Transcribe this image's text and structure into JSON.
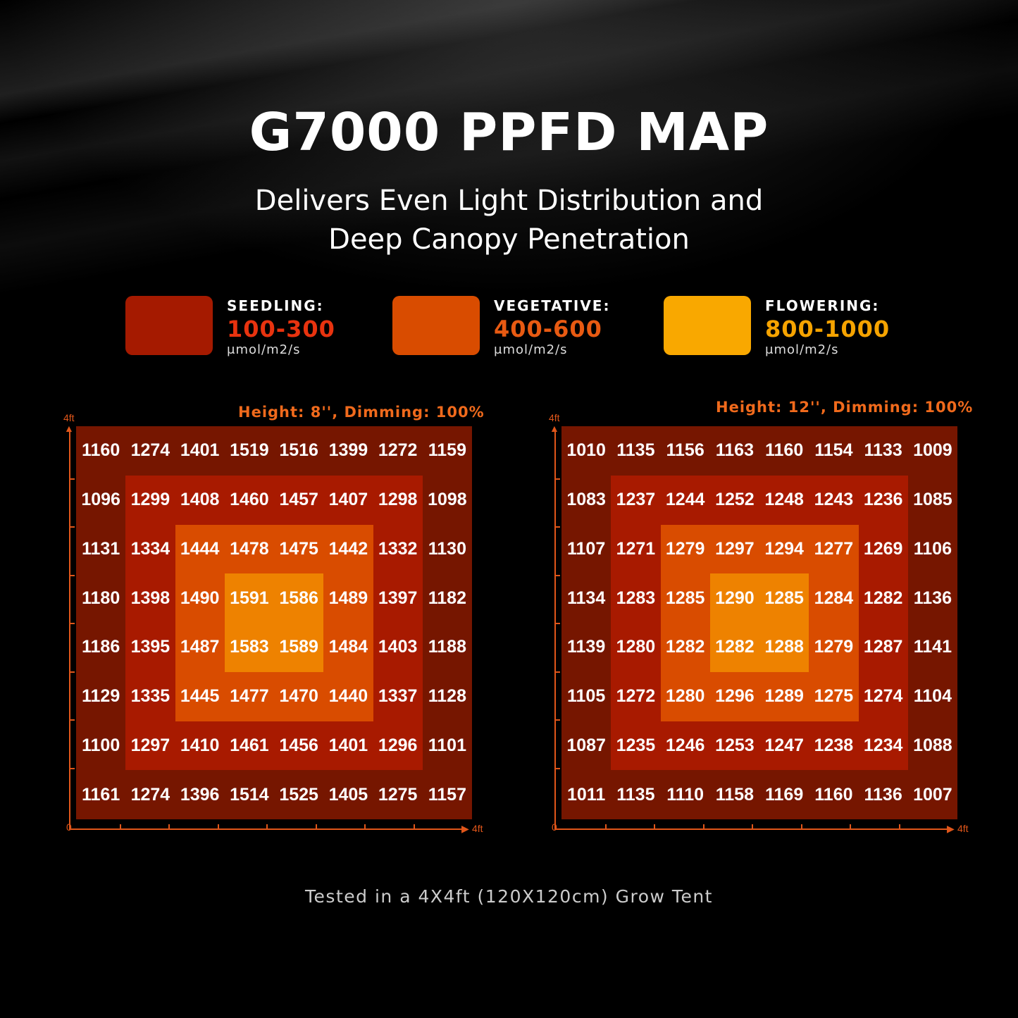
{
  "title": "G7000 PPFD MAP",
  "subtitle_line1": "Delivers Even Light Distribution and",
  "subtitle_line2": "Deep Canopy Penetration",
  "legend": [
    {
      "name": "SEEDLING:",
      "range": "100-300",
      "unit": "μmol/m2/s",
      "color": "#a51a00",
      "text_color": "#e8330f"
    },
    {
      "name": "VEGETATIVE:",
      "range": "400-600",
      "unit": "μmol/m2/s",
      "color": "#d94c00",
      "text_color": "#e85a12"
    },
    {
      "name": "FLOWERING:",
      "range": "800-1000",
      "unit": "μmol/m2/s",
      "color": "#f9a800",
      "text_color": "#f5a300"
    }
  ],
  "zone_colors": [
    "#761600",
    "#a81a00",
    "#d94c00",
    "#ee8200"
  ],
  "footer": "Tested in a 4X4ft (120X120cm) Grow Tent",
  "chart_data": [
    {
      "type": "heatmap",
      "title": "Height: 8'', Dimming: 100%",
      "x_axis": {
        "start_label": "0",
        "end_label": "4ft"
      },
      "y_axis": {
        "end_label": "4ft"
      },
      "rows": [
        [
          1160,
          1274,
          1401,
          1519,
          1516,
          1399,
          1272,
          1159
        ],
        [
          1096,
          1299,
          1408,
          1460,
          1457,
          1407,
          1298,
          1098
        ],
        [
          1131,
          1334,
          1444,
          1478,
          1475,
          1442,
          1332,
          1130
        ],
        [
          1180,
          1398,
          1490,
          1591,
          1586,
          1489,
          1397,
          1182
        ],
        [
          1186,
          1395,
          1487,
          1583,
          1589,
          1484,
          1403,
          1188
        ],
        [
          1129,
          1335,
          1445,
          1477,
          1470,
          1440,
          1337,
          1128
        ],
        [
          1100,
          1297,
          1410,
          1461,
          1456,
          1401,
          1296,
          1101
        ],
        [
          1161,
          1274,
          1396,
          1514,
          1525,
          1405,
          1275,
          1157
        ]
      ]
    },
    {
      "type": "heatmap",
      "title": "Height: 12'', Dimming: 100%",
      "x_axis": {
        "start_label": "0",
        "end_label": "4ft"
      },
      "y_axis": {
        "end_label": "4ft"
      },
      "rows": [
        [
          1010,
          1135,
          1156,
          1163,
          1160,
          1154,
          1133,
          1009
        ],
        [
          1083,
          1237,
          1244,
          1252,
          1248,
          1243,
          1236,
          1085
        ],
        [
          1107,
          1271,
          1279,
          1297,
          1294,
          1277,
          1269,
          1106
        ],
        [
          1134,
          1283,
          1285,
          1290,
          1285,
          1284,
          1282,
          1136
        ],
        [
          1139,
          1280,
          1282,
          1282,
          1288,
          1279,
          1287,
          1141
        ],
        [
          1105,
          1272,
          1280,
          1296,
          1289,
          1275,
          1274,
          1104
        ],
        [
          1087,
          1235,
          1246,
          1253,
          1247,
          1238,
          1234,
          1088
        ],
        [
          1011,
          1135,
          1110,
          1158,
          1169,
          1160,
          1136,
          1007
        ]
      ]
    }
  ]
}
